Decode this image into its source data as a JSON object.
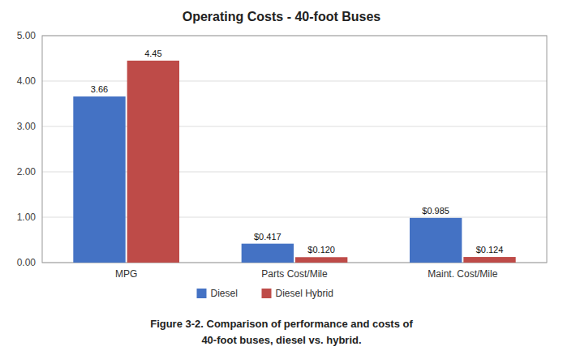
{
  "chart_data": {
    "type": "bar",
    "title": "Operating Costs - 40-foot Buses",
    "categories": [
      "MPG",
      "Parts Cost/Mile",
      "Maint. Cost/Mile"
    ],
    "series": [
      {
        "name": "Diesel",
        "color": "#4472C4",
        "values": [
          3.66,
          0.417,
          0.985
        ],
        "value_labels": [
          "3.66",
          "$0.417",
          "$0.985"
        ]
      },
      {
        "name": "Diesel Hybrid",
        "color": "#BE4B48",
        "values": [
          4.45,
          0.12,
          0.124
        ],
        "value_labels": [
          "4.45",
          "$0.120",
          "$0.124"
        ]
      }
    ],
    "ylim": [
      0,
      5.0
    ],
    "yticks": [
      {
        "value": 0.0,
        "label": "0.00"
      },
      {
        "value": 1.0,
        "label": "1.00"
      },
      {
        "value": 2.0,
        "label": "2.00"
      },
      {
        "value": 3.0,
        "label": "3.00"
      },
      {
        "value": 4.0,
        "label": "4.00"
      },
      {
        "value": 5.0,
        "label": "5.00"
      }
    ],
    "grid": true,
    "legend": "bottom",
    "data_labels": true,
    "annotations": [
      "Figure 3-2. Comparison of performance and costs of",
      "40-foot buses, diesel vs. hybrid."
    ]
  }
}
